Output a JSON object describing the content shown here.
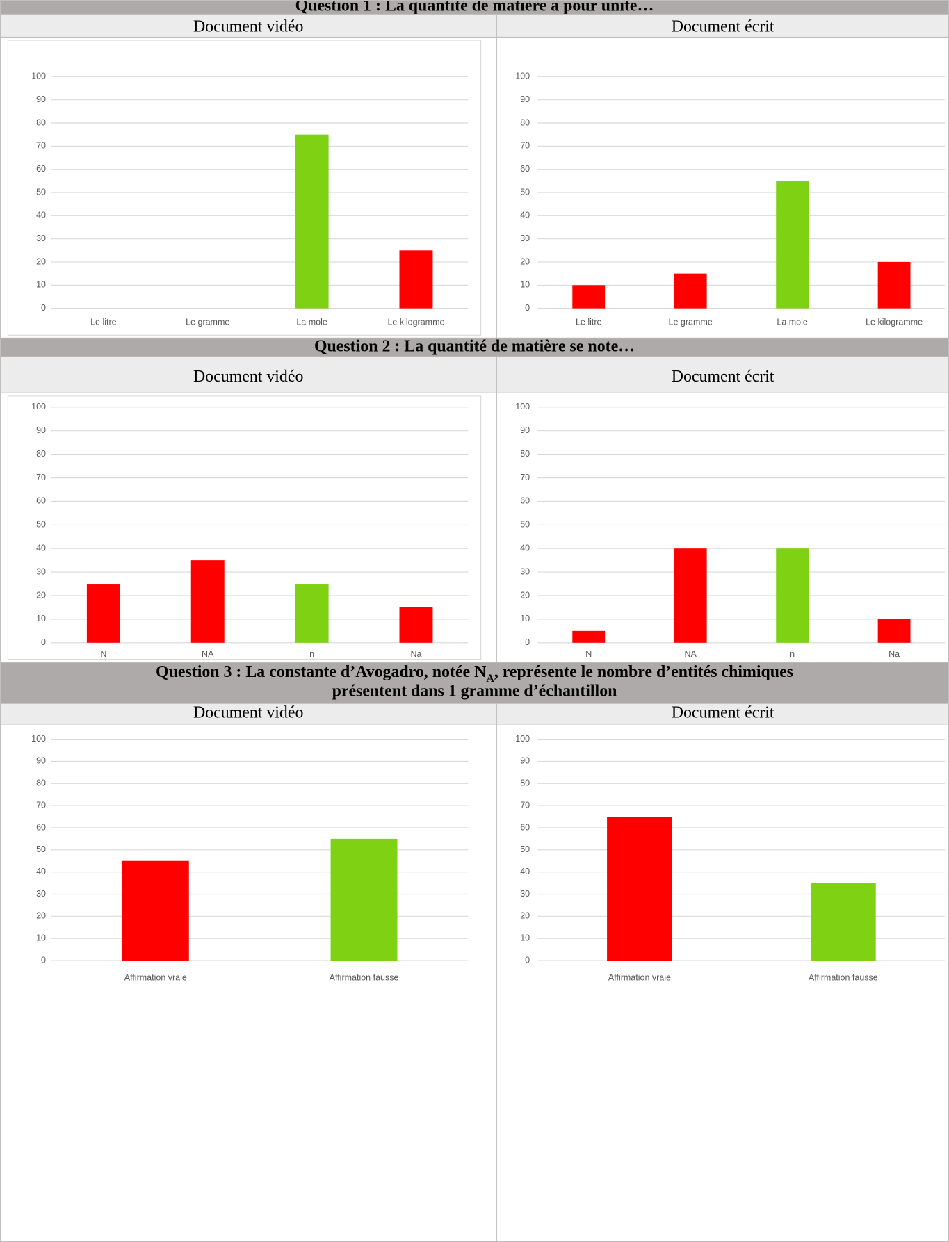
{
  "sections": [
    {
      "title_lines": [
        [
          {
            "text": "Question 1 : La quantité de matière a pour unité…"
          }
        ]
      ],
      "columns": [
        "Document vidéo",
        "Document écrit"
      ]
    },
    {
      "title_lines": [
        [
          {
            "text": "Question 2 : La quantité de matière se note…"
          }
        ]
      ],
      "columns": [
        "Document vidéo",
        "Document écrit"
      ]
    },
    {
      "title_lines": [
        [
          {
            "text": "Question 3 : La constante d’Avogadro, notée N"
          },
          {
            "text": "A",
            "sub": true
          },
          {
            "text": ", représente le nombre d’entités chimiques"
          }
        ],
        [
          {
            "text": "présentent dans 1 gramme d’échantillon"
          }
        ]
      ],
      "columns": [
        "Document vidéo",
        "Document écrit"
      ]
    }
  ],
  "chart_data": [
    {
      "type": "bar",
      "categories": [
        "Le litre",
        "Le gramme",
        "La mole",
        "Le kilogramme"
      ],
      "values": [
        0,
        0,
        75,
        25
      ],
      "colors": [
        "#ff0000",
        "#ff0000",
        "#7ed113",
        "#ff0000"
      ],
      "ylim": [
        0,
        100
      ],
      "yticks": [
        0,
        10,
        20,
        30,
        40,
        50,
        60,
        70,
        80,
        90,
        100
      ],
      "grid": true
    },
    {
      "type": "bar",
      "categories": [
        "Le litre",
        "Le gramme",
        "La mole",
        "Le kilogramme"
      ],
      "values": [
        10,
        15,
        55,
        20
      ],
      "colors": [
        "#ff0000",
        "#ff0000",
        "#7ed113",
        "#ff0000"
      ],
      "ylim": [
        0,
        100
      ],
      "yticks": [
        0,
        10,
        20,
        30,
        40,
        50,
        60,
        70,
        80,
        90,
        100
      ],
      "grid": true
    },
    {
      "type": "bar",
      "categories": [
        "N",
        "NA",
        "n",
        "Na"
      ],
      "values": [
        25,
        35,
        25,
        15
      ],
      "colors": [
        "#ff0000",
        "#ff0000",
        "#7ed113",
        "#ff0000"
      ],
      "ylim": [
        0,
        100
      ],
      "yticks": [
        0,
        10,
        20,
        30,
        40,
        50,
        60,
        70,
        80,
        90,
        100
      ],
      "grid": true
    },
    {
      "type": "bar",
      "categories": [
        "N",
        "NA",
        "n",
        "Na"
      ],
      "values": [
        5,
        40,
        40,
        10
      ],
      "colors": [
        "#ff0000",
        "#ff0000",
        "#7ed113",
        "#ff0000"
      ],
      "ylim": [
        0,
        100
      ],
      "yticks": [
        0,
        10,
        20,
        30,
        40,
        50,
        60,
        70,
        80,
        90,
        100
      ],
      "grid": true
    },
    {
      "type": "bar",
      "categories": [
        "Affirmation vraie",
        "Affirmation fausse"
      ],
      "values": [
        45,
        55
      ],
      "colors": [
        "#ff0000",
        "#7ed113"
      ],
      "ylim": [
        0,
        100
      ],
      "yticks": [
        0,
        10,
        20,
        30,
        40,
        50,
        60,
        70,
        80,
        90,
        100
      ],
      "grid": true
    },
    {
      "type": "bar",
      "categories": [
        "Affirmation vraie",
        "Affirmation fausse"
      ],
      "values": [
        65,
        35
      ],
      "colors": [
        "#ff0000",
        "#7ed113"
      ],
      "ylim": [
        0,
        100
      ],
      "yticks": [
        0,
        10,
        20,
        30,
        40,
        50,
        60,
        70,
        80,
        90,
        100
      ],
      "grid": true
    }
  ]
}
